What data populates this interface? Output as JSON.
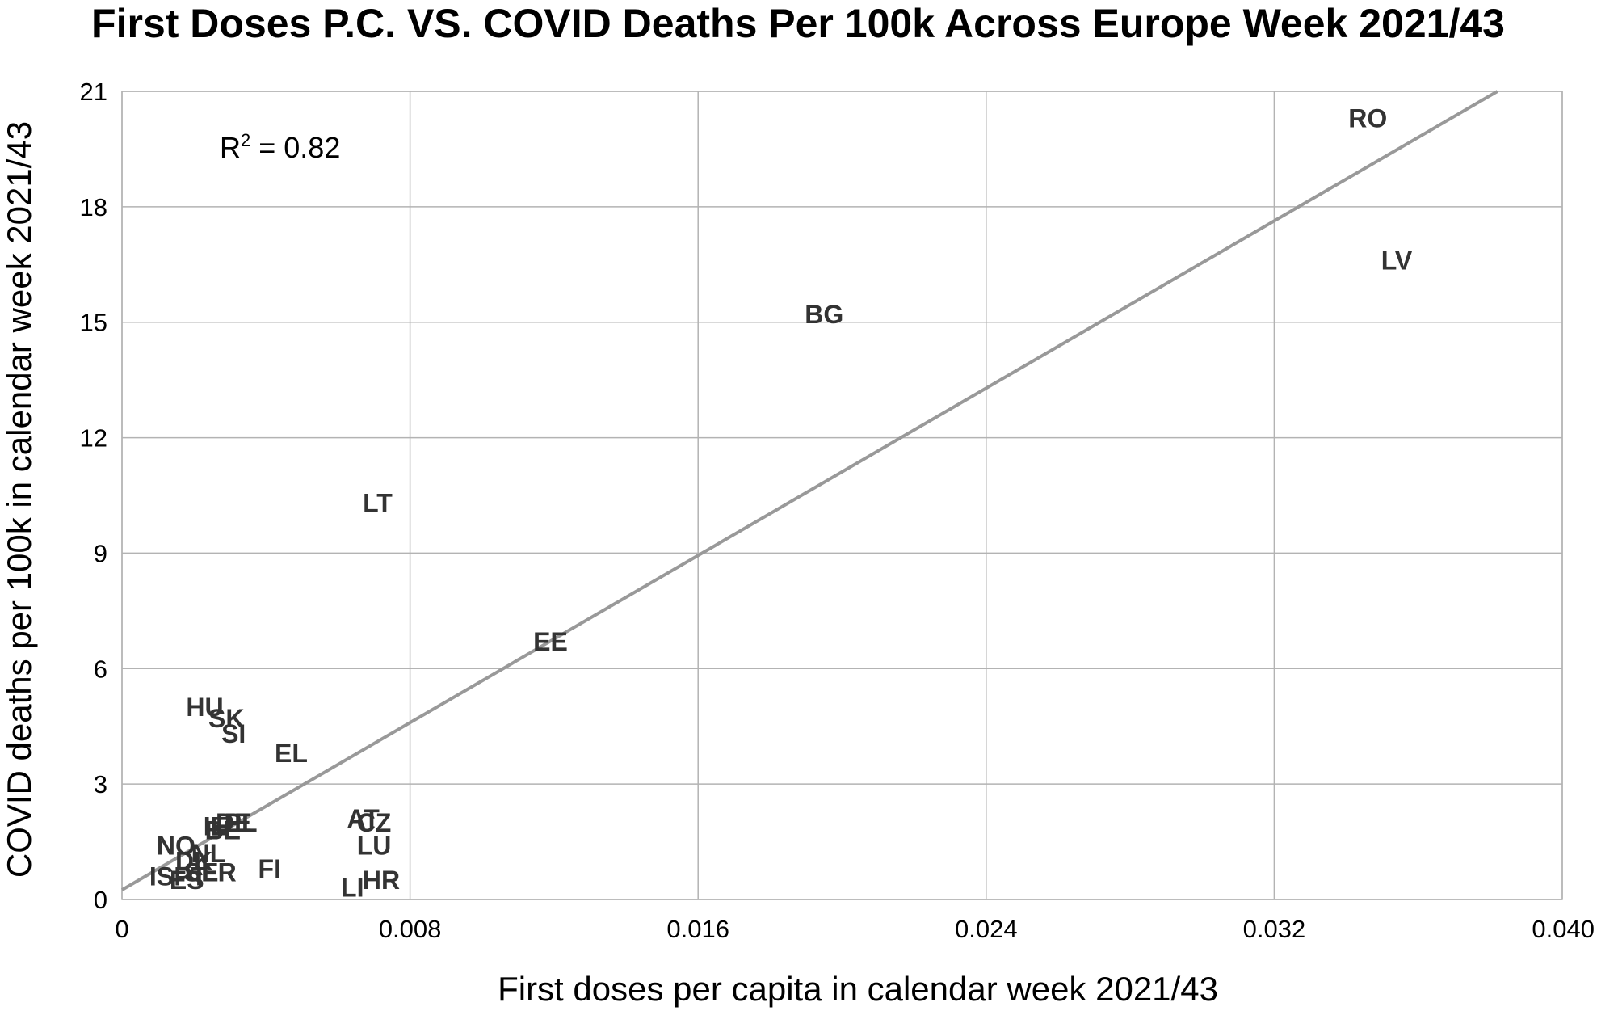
{
  "chart_data": {
    "type": "scatter",
    "title": "First Doses P.C. VS. COVID Deaths Per 100k Across Europe Week 2021/43",
    "xlabel": "First doses per capita in calendar week 2021/43",
    "ylabel": "COVID deaths per 100k in calendar week 2021/43",
    "xlim": [
      0,
      0.04
    ],
    "ylim": [
      0,
      21
    ],
    "x_ticks": [
      {
        "value": 0,
        "label": "0"
      },
      {
        "value": 0.008,
        "label": "0.008"
      },
      {
        "value": 0.016,
        "label": "0.016"
      },
      {
        "value": 0.024,
        "label": "0.024"
      },
      {
        "value": 0.032,
        "label": "0.032"
      },
      {
        "value": 0.04,
        "label": "0.040"
      }
    ],
    "y_ticks": [
      {
        "value": 0,
        "label": "0"
      },
      {
        "value": 3,
        "label": "3"
      },
      {
        "value": 6,
        "label": "6"
      },
      {
        "value": 9,
        "label": "9"
      },
      {
        "value": 12,
        "label": "12"
      },
      {
        "value": 15,
        "label": "15"
      },
      {
        "value": 18,
        "label": "18"
      },
      {
        "value": 21,
        "label": "21"
      }
    ],
    "grid": true,
    "annotation": {
      "r2_prefix": "R",
      "r2_sup": "2",
      "r2_suffix": " = 0.82"
    },
    "trendline": {
      "x": [
        0,
        0.0382
      ],
      "y": [
        0.25,
        21
      ]
    },
    "points": [
      {
        "label": "RO",
        "x": 0.0346,
        "y": 20.3
      },
      {
        "label": "LV",
        "x": 0.0354,
        "y": 16.6
      },
      {
        "label": "BG",
        "x": 0.0195,
        "y": 15.2
      },
      {
        "label": "LT",
        "x": 0.0071,
        "y": 10.3
      },
      {
        "label": "EE",
        "x": 0.0119,
        "y": 6.7
      },
      {
        "label": "HU",
        "x": 0.0023,
        "y": 5.0
      },
      {
        "label": "SK",
        "x": 0.0029,
        "y": 4.7
      },
      {
        "label": "SI",
        "x": 0.0031,
        "y": 4.3
      },
      {
        "label": "EL",
        "x": 0.0047,
        "y": 3.8
      },
      {
        "label": "AT",
        "x": 0.0067,
        "y": 2.1
      },
      {
        "label": "CZ",
        "x": 0.007,
        "y": 2.0
      },
      {
        "label": "LU",
        "x": 0.007,
        "y": 1.4
      },
      {
        "label": "PL",
        "x": 0.0033,
        "y": 2.0
      },
      {
        "label": "DE",
        "x": 0.0031,
        "y": 2.0
      },
      {
        "label": "IE",
        "x": 0.0026,
        "y": 1.9
      },
      {
        "label": "BE",
        "x": 0.0028,
        "y": 1.8
      },
      {
        "label": "NO",
        "x": 0.0015,
        "y": 1.4
      },
      {
        "label": "NL",
        "x": 0.0024,
        "y": 1.2
      },
      {
        "label": "DK",
        "x": 0.002,
        "y": 1.0
      },
      {
        "label": "FI",
        "x": 0.0041,
        "y": 0.8
      },
      {
        "label": "FR",
        "x": 0.0027,
        "y": 0.7
      },
      {
        "label": "SE",
        "x": 0.0022,
        "y": 0.7
      },
      {
        "label": "PT",
        "x": 0.0019,
        "y": 0.6
      },
      {
        "label": "IS",
        "x": 0.0011,
        "y": 0.6
      },
      {
        "label": "ES",
        "x": 0.0018,
        "y": 0.5
      },
      {
        "label": "HR",
        "x": 0.0072,
        "y": 0.5
      },
      {
        "label": "LI",
        "x": 0.0064,
        "y": 0.3
      }
    ]
  }
}
